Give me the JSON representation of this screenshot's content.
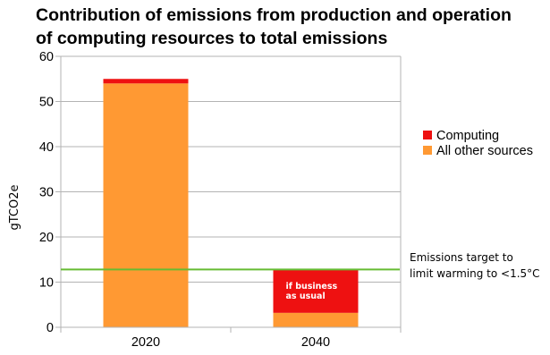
{
  "chart_data": {
    "type": "bar",
    "stacked": true,
    "title": [
      "Contribution of emissions from production and operation",
      "of computing resources to total emissions"
    ],
    "xlabel": "",
    "ylabel": "gTCO2e",
    "categories": [
      "2020",
      "2040"
    ],
    "ylim": [
      0,
      60
    ],
    "yticks": [
      0,
      10,
      20,
      30,
      40,
      50,
      60
    ],
    "grid": true,
    "legend_position": "right",
    "series": [
      {
        "name": "All other sources",
        "color": "#ff9933",
        "values": [
          54,
          3.2
        ]
      },
      {
        "name": "Computing",
        "color": "#ee1111",
        "values": [
          1,
          9.6
        ]
      }
    ],
    "legend": [
      "Computing",
      "All other sources"
    ],
    "target_line": {
      "value": 12.8,
      "color": "#66bb33",
      "label": [
        "Emissions target to",
        "limit warming to <1.5°C"
      ]
    },
    "bar_annotation": {
      "category": "2040",
      "text": [
        "if business",
        "as usual"
      ]
    }
  }
}
